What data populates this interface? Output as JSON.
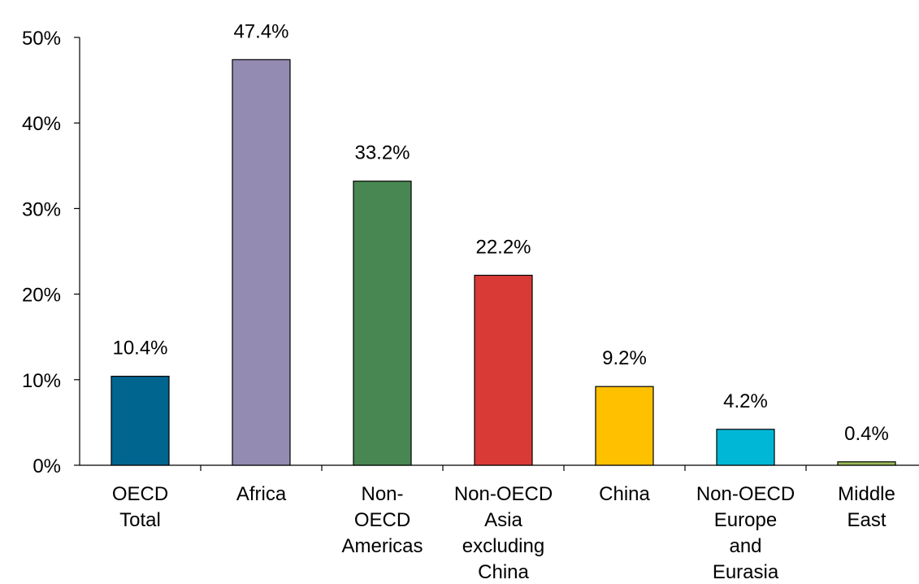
{
  "chart_data": {
    "type": "bar",
    "categories": [
      [
        "OECD",
        "Total"
      ],
      [
        "Africa"
      ],
      [
        "Non-",
        "OECD",
        "Americas"
      ],
      [
        "Non-OECD",
        "Asia",
        "excluding",
        "China"
      ],
      [
        "China"
      ],
      [
        "Non-OECD",
        "Europe",
        "and",
        "Eurasia"
      ],
      [
        "Middle",
        "East"
      ]
    ],
    "values": [
      10.4,
      47.4,
      33.2,
      22.2,
      9.2,
      4.2,
      0.4
    ],
    "data_labels": [
      "10.4%",
      "47.4%",
      "33.2%",
      "22.2%",
      "9.2%",
      "4.2%",
      "0.4%"
    ],
    "colors": [
      "#00658f",
      "#948bb3",
      "#488752",
      "#d93a35",
      "#ffc000",
      "#00b7d6",
      "#9bbb59"
    ],
    "ylim": [
      0,
      50
    ],
    "yticks": [
      0,
      10,
      20,
      30,
      40,
      50
    ],
    "ytick_labels": [
      "0%",
      "10%",
      "20%",
      "30%",
      "40%",
      "50%"
    ],
    "grid": false,
    "legend": false
  }
}
